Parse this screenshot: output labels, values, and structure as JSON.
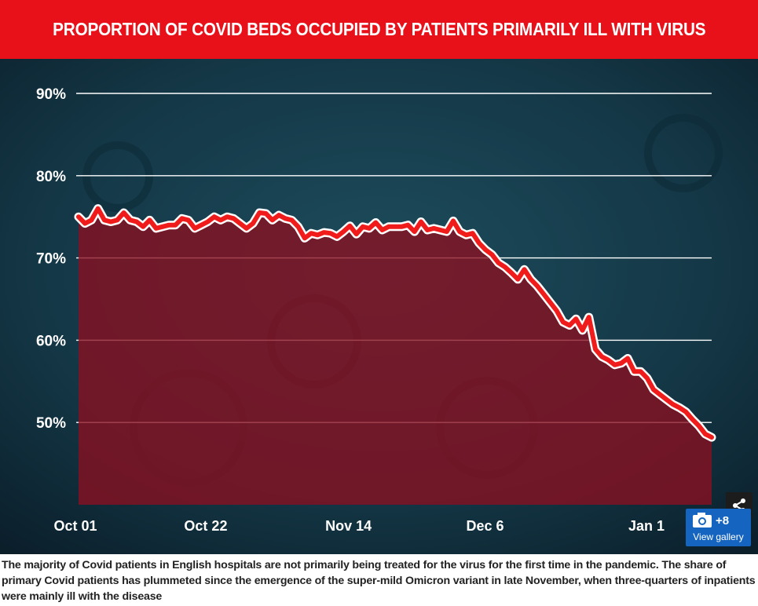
{
  "title": "PROPORTION OF COVID BEDS OCCUPIED BY PATIENTS PRIMARILY ILL WITH VIRUS",
  "caption": "The majority of Covid patients in English hospitals are not primarily being treated for the virus for the first time in the pandemic. The share of primary Covid patients has plummeted since the emergence of the super-mild Omicron variant in late November, when three-quarters of inpatients were mainly ill with the disease",
  "gallery": {
    "count": "+8",
    "label": "View gallery",
    "icon": "camera-icon"
  },
  "share": {
    "icon": "share-icon"
  },
  "colors": {
    "title_bg": "#e8111a",
    "line": "#f01c1c",
    "line_outline": "#ffffff",
    "area_fill": "#8a1020",
    "background": "#123240",
    "gallery_bg": "#1565c0"
  },
  "chart_data": {
    "type": "area",
    "title": "PROPORTION OF COVID BEDS OCCUPIED BY PATIENTS PRIMARILY ILL WITH VIRUS",
    "xlabel": "",
    "ylabel": "",
    "ylim": [
      40,
      90
    ],
    "yticks": [
      50,
      60,
      70,
      80,
      90
    ],
    "ytick_labels": [
      "50%",
      "60%",
      "70%",
      "80%",
      "90%"
    ],
    "xtick_labels": [
      "Oct 01",
      "Oct 22",
      "Nov 14",
      "Dec 6",
      "Jan 1"
    ],
    "xtick_days": [
      0,
      21,
      44,
      66,
      92
    ],
    "grid": true,
    "x_start_day": 0,
    "x_end_day": 102,
    "series": [
      {
        "values": [
          75.0,
          74.2,
          74.6,
          76.0,
          74.6,
          74.4,
          74.6,
          75.5,
          74.6,
          74.4,
          73.8,
          74.6,
          73.6,
          73.8,
          74.0,
          74.0,
          74.8,
          74.6,
          73.6,
          74.0,
          74.4,
          75.0,
          74.6,
          75.0,
          74.8,
          74.2,
          73.6,
          74.2,
          75.5,
          75.4,
          74.6,
          75.2,
          74.8,
          74.6,
          73.8,
          72.4,
          73.0,
          72.8,
          73.1,
          73.0,
          72.6,
          73.2,
          73.9,
          72.9,
          73.8,
          73.6,
          74.3,
          73.4,
          73.8,
          73.8,
          73.8,
          74.0,
          73.2,
          74.4,
          73.4,
          73.6,
          73.4,
          73.2,
          74.5,
          73.2,
          72.8,
          73.0,
          71.8,
          71.0,
          70.4,
          69.4,
          68.9,
          68.2,
          67.4,
          68.6,
          67.4,
          66.6,
          65.6,
          64.6,
          63.6,
          62.2,
          61.8,
          62.6,
          61.2,
          62.8,
          58.9,
          58.0,
          57.6,
          57.0,
          57.2,
          57.8,
          56.2,
          56.2,
          55.4,
          54.0,
          53.4,
          52.8,
          52.2,
          51.8,
          51.3,
          50.4,
          49.6,
          48.6,
          48.2
        ]
      }
    ]
  }
}
